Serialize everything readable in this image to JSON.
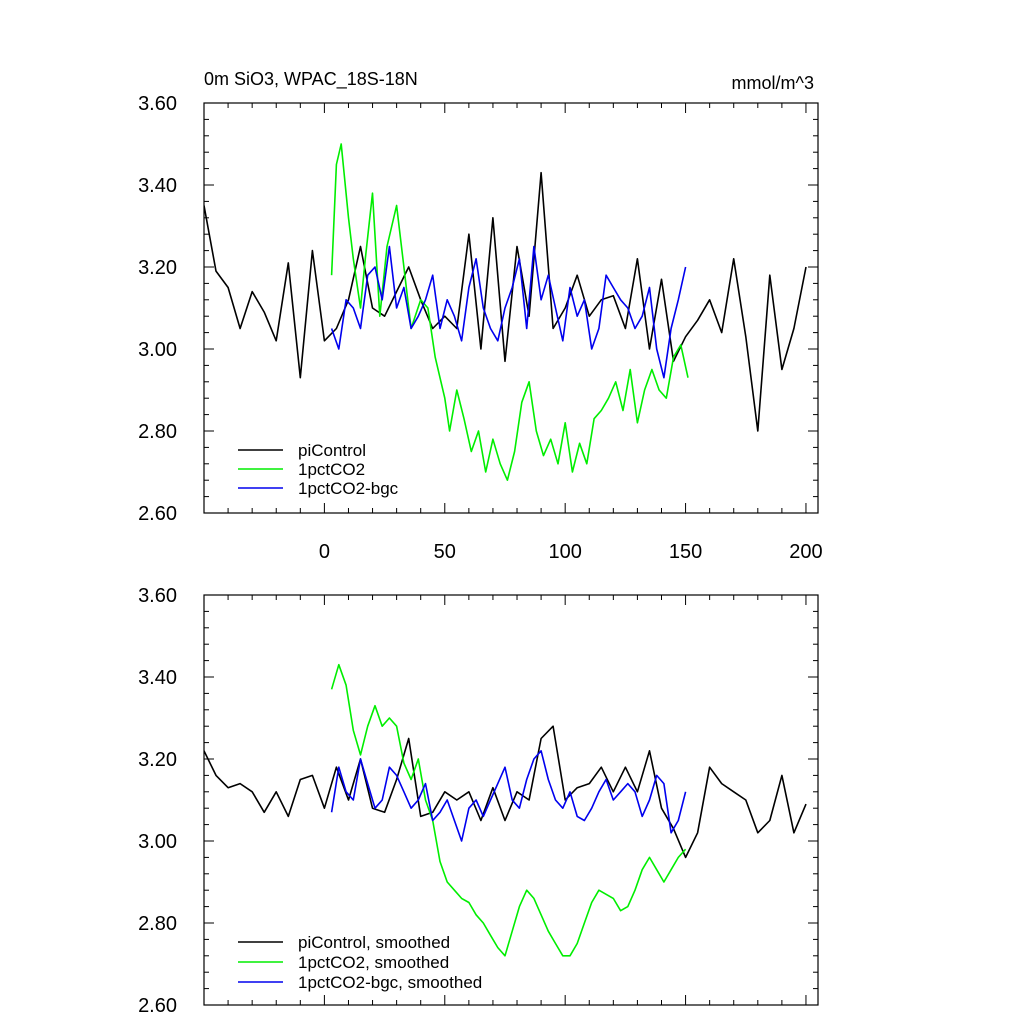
{
  "chart_data": [
    {
      "type": "line",
      "title": "0m SiO3, WPAC_18S-18N",
      "units": "mmol/m^3",
      "xlim": [
        -50,
        205
      ],
      "ylim": [
        2.6,
        3.6
      ],
      "yticks": [
        "2.60",
        "2.80",
        "3.00",
        "3.20",
        "3.40",
        "3.60"
      ],
      "xticks": [
        "0",
        "50",
        "100",
        "150",
        "200"
      ],
      "grid": false,
      "legend_position": "bottom-left",
      "series": [
        {
          "name": "piControl",
          "color": "#000000",
          "x": [
            -50,
            -45,
            -40,
            -35,
            -30,
            -25,
            -20,
            -15,
            -10,
            -5,
            0,
            5,
            10,
            15,
            20,
            25,
            30,
            35,
            40,
            45,
            50,
            55,
            60,
            65,
            70,
            75,
            80,
            85,
            90,
            95,
            100,
            105,
            110,
            115,
            120,
            125,
            130,
            135,
            140,
            145,
            150,
            155,
            160,
            165,
            170,
            175,
            180,
            185,
            190,
            195,
            200
          ],
          "y": [
            3.35,
            3.19,
            3.15,
            3.05,
            3.14,
            3.09,
            3.02,
            3.21,
            2.93,
            3.24,
            3.02,
            3.05,
            3.12,
            3.25,
            3.1,
            3.08,
            3.14,
            3.2,
            3.12,
            3.05,
            3.08,
            3.05,
            3.28,
            3.0,
            3.32,
            2.97,
            3.25,
            3.08,
            3.43,
            3.05,
            3.1,
            3.18,
            3.08,
            3.12,
            3.13,
            3.05,
            3.22,
            3.0,
            3.17,
            2.97,
            3.03,
            3.07,
            3.12,
            3.04,
            3.22,
            3.03,
            2.8,
            3.18,
            2.95,
            3.05,
            3.2
          ]
        },
        {
          "name": "1pctCO2",
          "color": "#00ee00",
          "x": [
            3,
            5,
            7,
            10,
            12,
            15,
            17,
            20,
            23,
            26,
            30,
            33,
            36,
            40,
            43,
            46,
            50,
            52,
            55,
            58,
            61,
            64,
            67,
            70,
            73,
            76,
            79,
            82,
            85,
            88,
            91,
            94,
            97,
            100,
            103,
            106,
            109,
            112,
            115,
            118,
            121,
            124,
            127,
            130,
            133,
            136,
            139,
            142,
            145,
            148,
            151
          ],
          "y": [
            3.18,
            3.45,
            3.5,
            3.32,
            3.22,
            3.1,
            3.22,
            3.38,
            3.08,
            3.25,
            3.35,
            3.2,
            3.05,
            3.12,
            3.1,
            2.98,
            2.88,
            2.8,
            2.9,
            2.83,
            2.75,
            2.8,
            2.7,
            2.78,
            2.72,
            2.68,
            2.75,
            2.87,
            2.92,
            2.8,
            2.74,
            2.78,
            2.72,
            2.82,
            2.7,
            2.77,
            2.72,
            2.83,
            2.85,
            2.88,
            2.92,
            2.85,
            2.95,
            2.82,
            2.9,
            2.95,
            2.9,
            2.88,
            2.98,
            3.01,
            2.93
          ]
        },
        {
          "name": "1pctCO2-bgc",
          "color": "#0000ee",
          "x": [
            3,
            6,
            9,
            12,
            15,
            18,
            21,
            24,
            27,
            30,
            33,
            36,
            39,
            42,
            45,
            48,
            51,
            54,
            57,
            60,
            63,
            66,
            69,
            72,
            75,
            78,
            81,
            84,
            87,
            90,
            93,
            96,
            99,
            102,
            105,
            108,
            111,
            114,
            117,
            120,
            123,
            126,
            129,
            132,
            135,
            138,
            141,
            144,
            147,
            150
          ],
          "y": [
            3.05,
            3.0,
            3.12,
            3.1,
            3.05,
            3.18,
            3.2,
            3.12,
            3.25,
            3.1,
            3.15,
            3.05,
            3.08,
            3.12,
            3.18,
            3.05,
            3.12,
            3.08,
            3.02,
            3.15,
            3.22,
            3.1,
            3.05,
            3.02,
            3.1,
            3.15,
            3.22,
            3.05,
            3.25,
            3.12,
            3.18,
            3.1,
            3.02,
            3.15,
            3.08,
            3.12,
            3.0,
            3.05,
            3.18,
            3.15,
            3.12,
            3.1,
            3.05,
            3.08,
            3.15,
            3.0,
            2.93,
            3.05,
            3.12,
            3.2
          ]
        }
      ]
    },
    {
      "type": "line",
      "xlim": [
        -50,
        205
      ],
      "ylim": [
        2.6,
        3.6
      ],
      "yticks": [
        "2.60",
        "2.80",
        "3.00",
        "3.20",
        "3.40",
        "3.60"
      ],
      "grid": false,
      "legend_position": "bottom-left",
      "series": [
        {
          "name": "piControl, smoothed",
          "color": "#000000",
          "x": [
            -50,
            -45,
            -40,
            -35,
            -30,
            -25,
            -20,
            -15,
            -10,
            -5,
            0,
            5,
            10,
            15,
            20,
            25,
            30,
            35,
            40,
            45,
            50,
            55,
            60,
            65,
            70,
            75,
            80,
            85,
            90,
            95,
            100,
            105,
            110,
            115,
            120,
            125,
            130,
            135,
            140,
            145,
            150,
            155,
            160,
            165,
            170,
            175,
            180,
            185,
            190,
            195,
            200
          ],
          "y": [
            3.22,
            3.16,
            3.13,
            3.14,
            3.12,
            3.07,
            3.12,
            3.06,
            3.15,
            3.16,
            3.08,
            3.18,
            3.1,
            3.2,
            3.08,
            3.07,
            3.15,
            3.25,
            3.06,
            3.07,
            3.12,
            3.1,
            3.12,
            3.05,
            3.13,
            3.05,
            3.12,
            3.1,
            3.25,
            3.28,
            3.1,
            3.13,
            3.14,
            3.18,
            3.12,
            3.18,
            3.12,
            3.22,
            3.08,
            3.03,
            2.96,
            3.02,
            3.18,
            3.14,
            3.12,
            3.1,
            3.02,
            3.05,
            3.16,
            3.02,
            3.09
          ]
        },
        {
          "name": "1pctCO2, smoothed",
          "color": "#00ee00",
          "x": [
            3,
            6,
            9,
            12,
            15,
            18,
            21,
            24,
            27,
            30,
            33,
            36,
            39,
            42,
            45,
            48,
            51,
            54,
            57,
            60,
            63,
            66,
            69,
            72,
            75,
            78,
            81,
            84,
            87,
            90,
            93,
            96,
            99,
            102,
            105,
            108,
            111,
            114,
            117,
            120,
            123,
            126,
            129,
            132,
            135,
            138,
            141,
            144,
            147,
            150
          ],
          "y": [
            3.37,
            3.43,
            3.38,
            3.27,
            3.21,
            3.28,
            3.33,
            3.28,
            3.3,
            3.28,
            3.19,
            3.15,
            3.2,
            3.1,
            3.05,
            2.95,
            2.9,
            2.88,
            2.86,
            2.85,
            2.82,
            2.8,
            2.77,
            2.74,
            2.72,
            2.78,
            2.84,
            2.88,
            2.86,
            2.82,
            2.78,
            2.75,
            2.72,
            2.72,
            2.75,
            2.8,
            2.85,
            2.88,
            2.87,
            2.86,
            2.83,
            2.84,
            2.88,
            2.93,
            2.96,
            2.93,
            2.9,
            2.93,
            2.96,
            2.98
          ]
        },
        {
          "name": "1pctCO2-bgc, smoothed",
          "color": "#0000ee",
          "x": [
            3,
            6,
            9,
            12,
            15,
            18,
            21,
            24,
            27,
            30,
            33,
            36,
            39,
            42,
            45,
            48,
            51,
            54,
            57,
            60,
            63,
            66,
            69,
            72,
            75,
            78,
            81,
            84,
            87,
            90,
            93,
            96,
            99,
            102,
            105,
            108,
            111,
            114,
            117,
            120,
            123,
            126,
            129,
            132,
            135,
            138,
            141,
            144,
            147,
            150
          ],
          "y": [
            3.07,
            3.18,
            3.12,
            3.1,
            3.2,
            3.14,
            3.08,
            3.1,
            3.18,
            3.16,
            3.12,
            3.08,
            3.1,
            3.14,
            3.05,
            3.07,
            3.1,
            3.05,
            3.0,
            3.08,
            3.1,
            3.06,
            3.1,
            3.14,
            3.18,
            3.1,
            3.08,
            3.15,
            3.2,
            3.22,
            3.15,
            3.1,
            3.08,
            3.12,
            3.06,
            3.05,
            3.08,
            3.12,
            3.15,
            3.1,
            3.12,
            3.14,
            3.12,
            3.06,
            3.1,
            3.16,
            3.14,
            3.02,
            3.05,
            3.12
          ]
        }
      ]
    }
  ]
}
